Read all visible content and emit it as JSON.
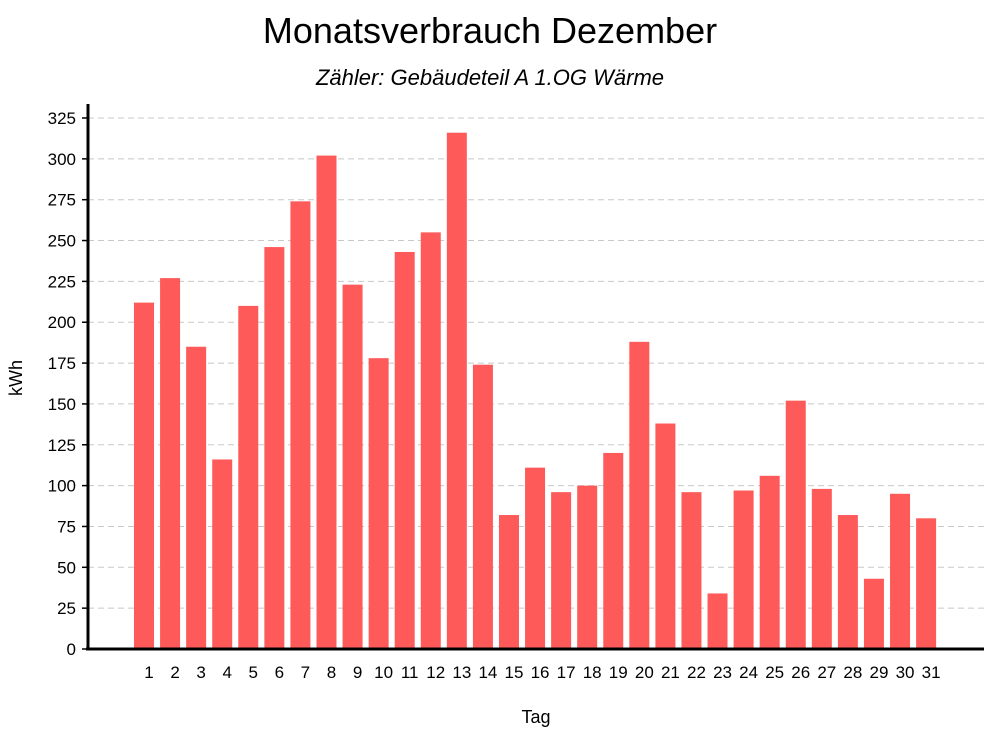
{
  "chart_data": {
    "type": "bar",
    "title": "Monatsverbrauch Dezember",
    "subtitle": "Zähler: Gebäudeteil A 1.OG Wärme",
    "xlabel": "Tag",
    "ylabel": "kWh",
    "ylim": [
      0,
      325
    ],
    "yticks": [
      0,
      25,
      50,
      75,
      100,
      125,
      150,
      175,
      200,
      225,
      250,
      275,
      300,
      325
    ],
    "grid": true,
    "bar_color": "#ff5a5a",
    "categories": [
      "1",
      "2",
      "3",
      "4",
      "5",
      "6",
      "7",
      "8",
      "9",
      "10",
      "11",
      "12",
      "13",
      "14",
      "15",
      "16",
      "17",
      "18",
      "19",
      "20",
      "21",
      "22",
      "23",
      "24",
      "25",
      "26",
      "27",
      "28",
      "29",
      "30",
      "31"
    ],
    "values": [
      212,
      227,
      185,
      116,
      210,
      246,
      274,
      302,
      223,
      178,
      243,
      255,
      316,
      174,
      82,
      111,
      96,
      100,
      120,
      188,
      138,
      96,
      34,
      97,
      106,
      152,
      98,
      82,
      43,
      95,
      80
    ]
  }
}
